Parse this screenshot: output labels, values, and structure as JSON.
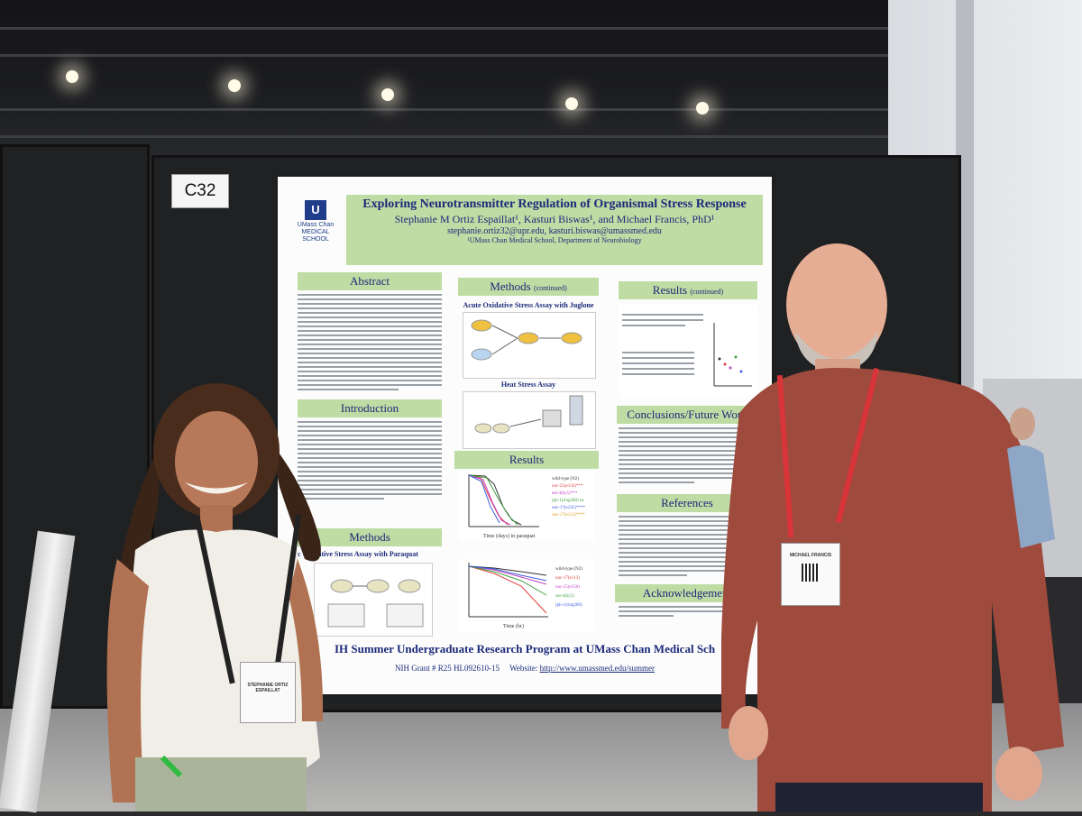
{
  "scene": {
    "booth_label": "C32"
  },
  "poster": {
    "logo": {
      "mark": "U",
      "name": "UMass Chan",
      "subtitle": "MEDICAL SCHOOL"
    },
    "title": "Exploring Neurotransmitter Regulation of Organismal Stress Response",
    "authors": "Stephanie M Ortiz Espaillat¹, Kasturi Biswas¹, and Michael Francis, PhD¹",
    "emails": "stephanie.ortiz32@upr.edu, kasturi.biswas@umassmed.edu",
    "affiliation": "¹UMass Chan Medical School, Department of Neurobiology",
    "sections": {
      "abstract": "Abstract",
      "introduction": "Introduction",
      "methods_left": "Methods",
      "methods_continued": "Methods",
      "methods_continued_tag": "(continued)",
      "results": "Results",
      "results_continued": "Results",
      "results_continued_tag": "(continued)",
      "conclusions": "Conclusions/Future Work",
      "references": "References",
      "acknowledgements": "Acknowledgement"
    },
    "figure_titles": {
      "juglone": "Acute Oxidative Stress Assay with Juglone",
      "heat": "Heat Stress Assay",
      "paraquat": "c Oxidative Stress Assay with Paraquat"
    },
    "graph1": {
      "legend": [
        "wild-type (N2)",
        "unc-25(e156)***",
        "eat-4(ky5)***",
        "(ph-1(ring280) ns",
        "unc-17(e245)****",
        "unc-17(e113)****"
      ],
      "xlabel": "Time (days) in paraquat"
    },
    "graph2": {
      "legend": [
        "wild-type (N2)",
        "unc-17(e113)",
        "unc-25(e156)",
        "eat-4(ky5)",
        "(ph-1(ring280)"
      ],
      "xlabel": "Time (hr)"
    },
    "footer": "IH Summer Undergraduate Research Program at UMass Chan Medical Sch",
    "grant": "NIH Grant # R25 HL092610-15",
    "website_label": "Website:",
    "website_url": "http://www.umassmed.edu/summer"
  },
  "badges": {
    "left": "STEPHANIE ORTIZ ESPAILLAT",
    "right": "MICHAEL FRANCIS"
  },
  "colors": {
    "poster_header_green": "#bfdca4",
    "poster_text_blue": "#1c2a7a",
    "lanyard_red": "#d8343a",
    "shirt_rust": "#9e4a3c"
  }
}
